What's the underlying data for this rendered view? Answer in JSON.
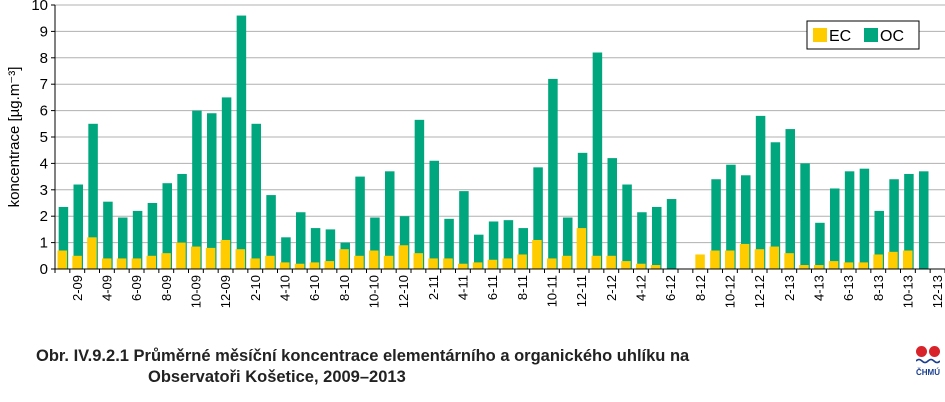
{
  "chart_data": {
    "type": "bar",
    "ylabel": "koncentrace [µg.m⁻³]",
    "ylim": [
      0,
      10
    ],
    "yticks": [
      "0",
      "1",
      "2",
      "3",
      "4",
      "5",
      "6",
      "7",
      "8",
      "9",
      "10"
    ],
    "grid": "horizontal",
    "legend_position": "top-right",
    "tick_labels": [
      "2-09",
      "4-09",
      "6-09",
      "8-09",
      "10-09",
      "12-09",
      "2-10",
      "4-10",
      "6-10",
      "8-10",
      "10-10",
      "12-10",
      "2-11",
      "4-11",
      "6-11",
      "8-11",
      "10-11",
      "12-11",
      "2-12",
      "4-12",
      "6-12",
      "8-12",
      "10-12",
      "12-12",
      "2-13",
      "4-13",
      "6-13",
      "8-13",
      "10-13",
      "12-13"
    ],
    "categories": [
      "1-09",
      "2-09",
      "3-09",
      "4-09",
      "5-09",
      "6-09",
      "7-09",
      "8-09",
      "9-09",
      "10-09",
      "11-09",
      "12-09",
      "1-10",
      "2-10",
      "3-10",
      "4-10",
      "5-10",
      "6-10",
      "7-10",
      "8-10",
      "9-10",
      "10-10",
      "11-10",
      "12-10",
      "1-11",
      "2-11",
      "3-11",
      "4-11",
      "5-11",
      "6-11",
      "7-11",
      "8-11",
      "9-11",
      "10-11",
      "11-11",
      "12-11",
      "1-12",
      "2-12",
      "3-12",
      "4-12",
      "5-12",
      "6-12",
      "7-12",
      "8-12",
      "9-12",
      "10-12",
      "11-12",
      "12-12",
      "1-13",
      "2-13",
      "3-13",
      "4-13",
      "5-13",
      "6-13",
      "7-13",
      "8-13",
      "9-13",
      "10-13",
      "11-13",
      "12-13"
    ],
    "series": [
      {
        "name": "EC",
        "color": "#ffcc00",
        "values": [
          0.7,
          0.5,
          1.2,
          0.4,
          0.4,
          0.4,
          0.5,
          0.6,
          1.0,
          0.85,
          0.8,
          1.1,
          0.75,
          0.4,
          0.5,
          0.25,
          0.2,
          0.25,
          0.3,
          0.75,
          0.5,
          0.7,
          0.5,
          0.9,
          0.6,
          0.4,
          0.4,
          0.2,
          0.25,
          0.35,
          0.4,
          0.55,
          1.1,
          0.4,
          0.5,
          1.55,
          0.5,
          0.5,
          0.3,
          0.2,
          0.15,
          null,
          null,
          0.55,
          0.7,
          0.7,
          0.95,
          0.75,
          0.85,
          0.6,
          0.15,
          0.15,
          0.3,
          0.25,
          0.25,
          0.55,
          0.65,
          0.7,
          null,
          null
        ]
      },
      {
        "name": "OC",
        "color": "#00a67e",
        "values": [
          2.35,
          3.2,
          5.5,
          2.55,
          1.95,
          2.2,
          2.5,
          3.25,
          3.6,
          6.0,
          5.9,
          6.5,
          9.6,
          5.5,
          2.8,
          1.2,
          2.15,
          1.55,
          1.5,
          1.0,
          3.5,
          1.95,
          3.7,
          2.0,
          5.65,
          4.1,
          1.9,
          2.95,
          1.3,
          1.8,
          1.85,
          1.55,
          3.85,
          7.2,
          1.95,
          4.4,
          8.2,
          4.2,
          3.2,
          2.15,
          2.35,
          2.65,
          null,
          null,
          3.4,
          3.95,
          3.55,
          5.8,
          4.8,
          5.3,
          4.0,
          1.75,
          3.05,
          3.7,
          3.8,
          2.2,
          3.4,
          3.6,
          3.7,
          null
        ]
      }
    ]
  },
  "caption": {
    "line1": "Obr. IV.9.2.1  Průměrné měsíční koncentrace elementárního a organického uhlíku na",
    "line2": "Observatoři Košetice, 2009–2013"
  },
  "logo": {
    "text": "ČHMÚ"
  }
}
